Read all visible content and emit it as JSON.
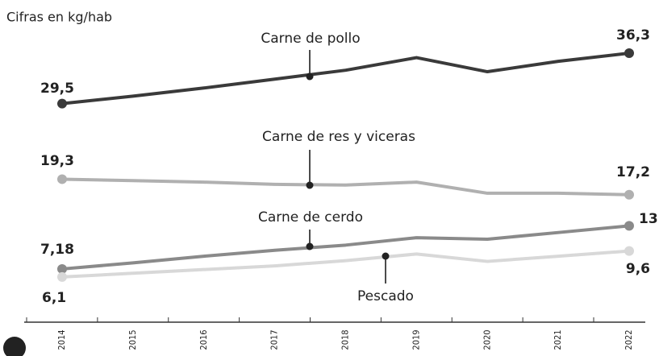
{
  "chart_data": {
    "type": "line",
    "subtitle": "Cifras en kg/hab",
    "categories": [
      "2014",
      "2015",
      "2016",
      "2017",
      "2018",
      "2019",
      "2020",
      "2021",
      "2022"
    ],
    "ylim": [
      0,
      40
    ],
    "series": [
      {
        "name": "Carne de pollo",
        "color": "#3a3a3a",
        "values": [
          29.5,
          30.5,
          31.6,
          32.8,
          34.0,
          35.7,
          33.8,
          35.2,
          36.3
        ],
        "value_labels": [
          "29,5",
          null,
          null,
          null,
          null,
          null,
          null,
          null,
          "36,3"
        ]
      },
      {
        "name": "Carne de res y viceras",
        "color": "#b0b0b0",
        "values": [
          19.3,
          19.1,
          18.9,
          18.6,
          18.5,
          18.9,
          17.4,
          17.4,
          17.2
        ],
        "value_labels": [
          "19,3",
          null,
          null,
          null,
          null,
          null,
          null,
          null,
          "17,2"
        ]
      },
      {
        "name": "Carne de cerdo",
        "color": "#8a8a8a",
        "values": [
          7.18,
          8.0,
          8.9,
          9.7,
          10.4,
          11.4,
          11.2,
          12.1,
          13
        ],
        "value_labels": [
          "7,18",
          null,
          null,
          null,
          null,
          null,
          null,
          null,
          "13"
        ]
      },
      {
        "name": "Pescado",
        "color": "#d8d8d8",
        "values": [
          6.1,
          6.6,
          7.1,
          7.6,
          8.3,
          9.2,
          8.2,
          8.9,
          9.6
        ],
        "value_labels": [
          "6,1",
          null,
          null,
          null,
          null,
          null,
          null,
          null,
          "9,6"
        ]
      }
    ]
  }
}
